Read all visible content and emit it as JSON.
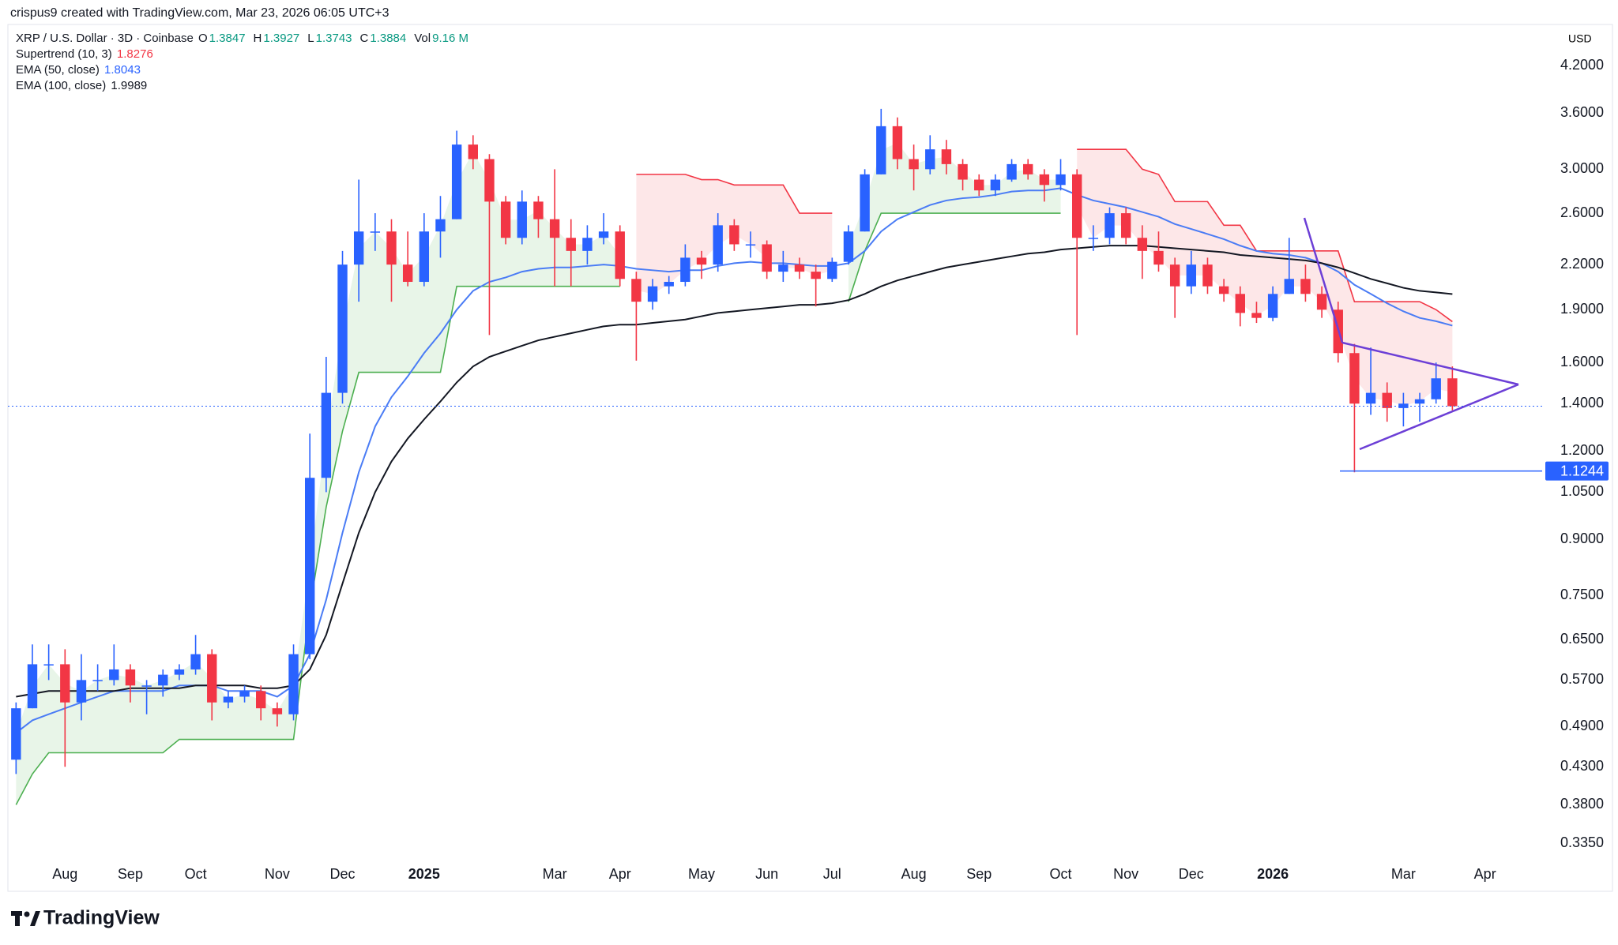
{
  "page": {
    "attribution": "crispus9 created with TradingView.com, Mar 23, 2026 06:05 UTC+3",
    "logo": "TradingView",
    "currency": "USD"
  },
  "header": {
    "symbol": "XRP / U.S. Dollar · 3D · Coinbase",
    "ohlc": [
      {
        "label": "O",
        "value": 1.3847
      },
      {
        "label": "H",
        "value": 1.3927
      },
      {
        "label": "L",
        "value": 1.3743
      },
      {
        "label": "C",
        "value": 1.3884
      },
      {
        "label": "Vol",
        "value": "9.16 M"
      }
    ]
  },
  "chart_data": {
    "type": "candlestick",
    "log_y": true,
    "ylim": [
      0.317,
      4.79
    ],
    "yticks": [
      {
        "value": 4.2,
        "label": "4.2000"
      },
      {
        "value": 3.6,
        "label": "3.6000"
      },
      {
        "value": 3.0,
        "label": "3.0000"
      },
      {
        "value": 2.6,
        "label": "2.6000"
      },
      {
        "value": 2.2,
        "label": "2.2000"
      },
      {
        "value": 1.9,
        "label": "1.9000"
      },
      {
        "value": 1.6,
        "label": "1.6000"
      },
      {
        "value": 1.4,
        "label": "1.4000"
      },
      {
        "value": 1.2,
        "label": "1.2000"
      },
      {
        "value": 1.05,
        "label": "1.0500"
      },
      {
        "value": 0.9,
        "label": "0.9000"
      },
      {
        "value": 0.75,
        "label": "0.7500"
      },
      {
        "value": 0.65,
        "label": "0.6500"
      },
      {
        "value": 0.57,
        "label": "0.5700"
      },
      {
        "value": 0.49,
        "label": "0.4900"
      },
      {
        "value": 0.43,
        "label": "0.4300"
      },
      {
        "value": 0.38,
        "label": "0.3800"
      },
      {
        "value": 0.335,
        "label": "0.3350"
      }
    ],
    "categories": [
      null,
      null,
      null,
      "Aug",
      null,
      null,
      null,
      "Sep",
      null,
      null,
      null,
      "Oct",
      null,
      null,
      null,
      null,
      "Nov",
      null,
      null,
      null,
      "Dec",
      null,
      null,
      null,
      null,
      "2025",
      null,
      null,
      null,
      null,
      null,
      null,
      null,
      "Mar",
      null,
      null,
      null,
      "Apr",
      null,
      null,
      null,
      null,
      "May",
      null,
      null,
      null,
      "Jun",
      null,
      null,
      null,
      "Jul",
      null,
      null,
      null,
      null,
      "Aug",
      null,
      null,
      null,
      "Sep",
      null,
      null,
      null,
      null,
      "Oct",
      null,
      null,
      null,
      "Nov",
      null,
      null,
      null,
      "Dec",
      null,
      null,
      null,
      null,
      "2026",
      null,
      null,
      null,
      null,
      null,
      null,
      null,
      "Mar",
      null,
      null,
      null,
      null,
      "Apr",
      null,
      null,
      null
    ],
    "up_color": "#2962ff",
    "down_color": "#f23645",
    "open": [
      0.44,
      0.52,
      0.6,
      0.6,
      0.53,
      0.57,
      0.57,
      0.59,
      0.56,
      0.56,
      0.58,
      0.59,
      0.62,
      0.53,
      0.54,
      0.55,
      0.52,
      0.51,
      0.62,
      1.1,
      1.45,
      2.2,
      2.45,
      2.45,
      2.2,
      2.08,
      2.45,
      2.55,
      3.25,
      3.1,
      2.7,
      2.4,
      2.7,
      2.55,
      2.4,
      2.3,
      2.4,
      2.45,
      2.1,
      1.95,
      2.05,
      2.08,
      2.25,
      2.2,
      2.5,
      2.35,
      2.35,
      2.15,
      2.2,
      2.15,
      2.1,
      2.22,
      2.45,
      2.95,
      3.45,
      3.1,
      3.0,
      3.2,
      3.05,
      2.9,
      2.8,
      2.9,
      3.05,
      2.95,
      2.85,
      2.95,
      2.4,
      2.4,
      2.6,
      2.4,
      2.3,
      2.2,
      2.05,
      2.2,
      2.05,
      2.0,
      1.88,
      1.85,
      2.0,
      2.1,
      2.0,
      1.9,
      1.65,
      1.4,
      1.45,
      1.38,
      1.4,
      1.42,
      1.52,
      null,
      null,
      null,
      null,
      null
    ],
    "high": [
      0.53,
      0.64,
      0.64,
      0.63,
      0.62,
      0.6,
      0.64,
      0.6,
      0.57,
      0.59,
      0.6,
      0.66,
      0.63,
      0.55,
      0.56,
      0.56,
      0.53,
      0.64,
      1.27,
      1.63,
      2.3,
      2.9,
      2.6,
      2.55,
      2.45,
      2.6,
      2.75,
      3.4,
      3.35,
      3.15,
      2.75,
      2.8,
      2.75,
      3.0,
      2.55,
      2.5,
      2.6,
      2.5,
      2.15,
      2.1,
      2.12,
      2.35,
      2.3,
      2.6,
      2.55,
      2.45,
      2.38,
      2.3,
      2.25,
      2.2,
      2.25,
      2.5,
      3.0,
      3.65,
      3.55,
      3.25,
      3.35,
      3.3,
      3.1,
      2.95,
      2.95,
      3.1,
      3.1,
      3.0,
      3.1,
      3.0,
      2.5,
      2.65,
      2.65,
      2.5,
      2.45,
      2.25,
      2.3,
      2.25,
      2.1,
      2.05,
      1.95,
      2.05,
      2.4,
      2.2,
      2.05,
      1.95,
      1.7,
      1.68,
      1.5,
      1.45,
      1.45,
      1.6,
      1.58,
      null,
      null,
      null,
      null,
      null
    ],
    "low": [
      0.42,
      0.52,
      0.57,
      0.43,
      0.5,
      0.55,
      0.56,
      0.53,
      0.51,
      0.54,
      0.57,
      0.58,
      0.5,
      0.52,
      0.53,
      0.5,
      0.49,
      0.5,
      0.61,
      1.05,
      1.4,
      1.95,
      2.3,
      1.95,
      2.05,
      2.05,
      2.25,
      2.55,
      3.0,
      1.75,
      2.35,
      2.35,
      2.4,
      2.05,
      2.05,
      2.2,
      2.35,
      2.05,
      1.61,
      1.9,
      2.0,
      2.05,
      2.1,
      2.15,
      2.3,
      2.25,
      2.1,
      2.08,
      2.1,
      1.92,
      2.08,
      2.2,
      2.45,
      2.95,
      3.0,
      2.8,
      2.95,
      2.95,
      2.8,
      2.75,
      2.75,
      2.88,
      2.9,
      2.7,
      2.8,
      1.75,
      2.3,
      2.35,
      2.35,
      2.1,
      2.15,
      1.85,
      2.0,
      2.0,
      1.95,
      1.8,
      1.82,
      1.83,
      2.0,
      1.95,
      1.85,
      1.6,
      1.12,
      1.35,
      1.32,
      1.3,
      1.32,
      1.4,
      1.37,
      null,
      null,
      null,
      null,
      null
    ],
    "close": [
      0.52,
      0.6,
      0.6,
      0.53,
      0.57,
      0.57,
      0.59,
      0.56,
      0.56,
      0.58,
      0.59,
      0.62,
      0.53,
      0.54,
      0.55,
      0.52,
      0.51,
      0.62,
      1.1,
      1.45,
      2.2,
      2.45,
      2.45,
      2.2,
      2.08,
      2.45,
      2.55,
      3.25,
      3.1,
      2.7,
      2.4,
      2.7,
      2.55,
      2.4,
      2.3,
      2.4,
      2.45,
      2.1,
      1.95,
      2.05,
      2.08,
      2.25,
      2.2,
      2.5,
      2.35,
      2.35,
      2.15,
      2.2,
      2.15,
      2.1,
      2.22,
      2.45,
      2.95,
      3.45,
      3.1,
      3.0,
      3.2,
      3.05,
      2.9,
      2.8,
      2.9,
      3.05,
      2.95,
      2.85,
      2.95,
      2.4,
      2.4,
      2.6,
      2.4,
      2.3,
      2.2,
      2.05,
      2.2,
      2.05,
      2.0,
      1.88,
      1.85,
      2.0,
      2.1,
      2.0,
      1.9,
      1.65,
      1.4,
      1.45,
      1.38,
      1.4,
      1.42,
      1.52,
      1.3884,
      null,
      null,
      null,
      null,
      null
    ],
    "supertrend": {
      "name": "Supertrend (10, 3)",
      "up": {
        "color": "#4caf50",
        "fill": "rgba(76,175,80,0.13)",
        "values": [
          0.38,
          0.42,
          0.45,
          0.45,
          0.45,
          0.45,
          0.45,
          0.45,
          0.45,
          0.45,
          0.47,
          0.47,
          0.47,
          0.47,
          0.47,
          0.47,
          0.47,
          0.47,
          0.72,
          1.0,
          1.28,
          1.55,
          1.55,
          1.55,
          1.55,
          1.55,
          1.55,
          2.05,
          2.05,
          2.05,
          2.05,
          2.05,
          2.05,
          2.05,
          2.05,
          2.05,
          2.05,
          2.05,
          null,
          null,
          null,
          null,
          null,
          null,
          null,
          null,
          null,
          null,
          null,
          null,
          null,
          1.95,
          2.3,
          2.6,
          2.6,
          2.6,
          2.6,
          2.6,
          2.6,
          2.6,
          2.6,
          2.6,
          2.6,
          2.6,
          2.6,
          null,
          null,
          null,
          null,
          null,
          null,
          null,
          null,
          null,
          null,
          null,
          null,
          null,
          null,
          null,
          null,
          null,
          null,
          null,
          null,
          null,
          null,
          null,
          null,
          null,
          null,
          null,
          null,
          null
        ]
      },
      "down": {
        "color": "#f23645",
        "fill": "rgba(242,54,69,0.12)",
        "values": [
          null,
          null,
          null,
          null,
          null,
          null,
          null,
          null,
          null,
          null,
          null,
          null,
          null,
          null,
          null,
          null,
          null,
          null,
          null,
          null,
          null,
          null,
          null,
          null,
          null,
          null,
          null,
          null,
          null,
          null,
          null,
          null,
          null,
          null,
          null,
          null,
          null,
          null,
          2.95,
          2.95,
          2.95,
          2.95,
          2.9,
          2.9,
          2.85,
          2.85,
          2.85,
          2.85,
          2.6,
          2.6,
          2.6,
          null,
          null,
          null,
          null,
          null,
          null,
          null,
          null,
          null,
          null,
          null,
          null,
          null,
          null,
          3.2,
          3.2,
          3.2,
          3.2,
          3.0,
          2.95,
          2.7,
          2.7,
          2.7,
          2.5,
          2.5,
          2.3,
          2.3,
          2.3,
          2.3,
          2.3,
          2.3,
          1.95,
          1.95,
          1.95,
          1.95,
          1.95,
          1.9,
          1.8276,
          null,
          null,
          null,
          null,
          null
        ]
      }
    },
    "series": [
      {
        "name": "EMA (50, close)",
        "color": "#4a7cf5",
        "values": [
          0.48,
          0.5,
          0.51,
          0.52,
          0.53,
          0.54,
          0.55,
          0.55,
          0.55,
          0.55,
          0.56,
          0.56,
          0.56,
          0.55,
          0.55,
          0.55,
          0.54,
          0.56,
          0.62,
          0.74,
          0.92,
          1.12,
          1.3,
          1.43,
          1.53,
          1.65,
          1.76,
          1.9,
          2.02,
          2.08,
          2.11,
          2.15,
          2.17,
          2.18,
          2.18,
          2.19,
          2.2,
          2.19,
          2.17,
          2.16,
          2.15,
          2.16,
          2.16,
          2.19,
          2.21,
          2.22,
          2.21,
          2.21,
          2.2,
          2.19,
          2.19,
          2.21,
          2.3,
          2.45,
          2.55,
          2.61,
          2.67,
          2.71,
          2.73,
          2.74,
          2.76,
          2.79,
          2.8,
          2.8,
          2.82,
          2.76,
          2.71,
          2.68,
          2.65,
          2.61,
          2.57,
          2.51,
          2.47,
          2.43,
          2.39,
          2.34,
          2.3,
          2.28,
          2.27,
          2.25,
          2.21,
          2.15,
          2.06,
          2.0,
          1.94,
          1.89,
          1.85,
          1.83,
          1.8043,
          null,
          null,
          null,
          null,
          null
        ]
      },
      {
        "name": "EMA (100, close)",
        "color": "#131722",
        "values": [
          0.54,
          0.545,
          0.55,
          0.55,
          0.55,
          0.55,
          0.55,
          0.555,
          0.555,
          0.555,
          0.555,
          0.56,
          0.56,
          0.56,
          0.56,
          0.555,
          0.555,
          0.56,
          0.59,
          0.66,
          0.78,
          0.92,
          1.05,
          1.16,
          1.25,
          1.33,
          1.41,
          1.5,
          1.58,
          1.63,
          1.66,
          1.69,
          1.72,
          1.74,
          1.76,
          1.78,
          1.8,
          1.81,
          1.81,
          1.82,
          1.83,
          1.84,
          1.86,
          1.88,
          1.89,
          1.9,
          1.91,
          1.92,
          1.93,
          1.93,
          1.94,
          1.96,
          2.0,
          2.05,
          2.09,
          2.12,
          2.15,
          2.18,
          2.2,
          2.22,
          2.24,
          2.26,
          2.28,
          2.29,
          2.31,
          2.32,
          2.33,
          2.34,
          2.34,
          2.34,
          2.33,
          2.32,
          2.31,
          2.3,
          2.29,
          2.27,
          2.26,
          2.25,
          2.24,
          2.23,
          2.21,
          2.18,
          2.14,
          2.1,
          2.07,
          2.04,
          2.02,
          2.01,
          1.9989,
          null,
          null,
          null,
          null,
          null
        ]
      }
    ],
    "hline": {
      "value": 1.1244,
      "color": "#2962ff"
    }
  }
}
